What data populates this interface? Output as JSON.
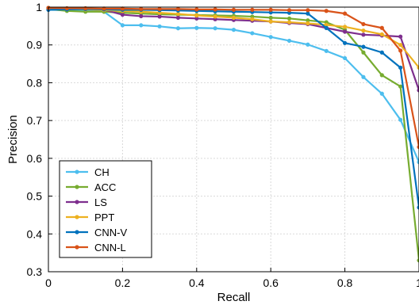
{
  "chart_data": {
    "type": "line",
    "title": "",
    "xlabel": "Recall",
    "ylabel": "Precision",
    "xlim": [
      0,
      1
    ],
    "ylim": [
      0.3,
      1
    ],
    "grid": true,
    "legend_position": "lower-left",
    "x_ticks": [
      "0",
      "0.2",
      "0.4",
      "0.6",
      "0.8",
      "1"
    ],
    "y_ticks": [
      "0.3",
      "0.4",
      "0.5",
      "0.6",
      "0.7",
      "0.8",
      "0.9",
      "1"
    ],
    "x": [
      0,
      0.05,
      0.1,
      0.15,
      0.2,
      0.25,
      0.3,
      0.35,
      0.4,
      0.45,
      0.5,
      0.55,
      0.6,
      0.65,
      0.7,
      0.75,
      0.8,
      0.85,
      0.9,
      0.95,
      1
    ],
    "series": [
      {
        "name": "CH",
        "color": "#4DBEEE",
        "values": [
          0.993,
          0.992,
          0.99,
          0.988,
          0.952,
          0.952,
          0.949,
          0.944,
          0.945,
          0.944,
          0.94,
          0.931,
          0.921,
          0.911,
          0.901,
          0.884,
          0.865,
          0.815,
          0.771,
          0.702,
          0.59
        ]
      },
      {
        "name": "ACC",
        "color": "#77AC30",
        "values": [
          0.995,
          0.99,
          0.988,
          0.988,
          0.985,
          0.983,
          0.981,
          0.98,
          0.979,
          0.978,
          0.977,
          0.975,
          0.972,
          0.97,
          0.965,
          0.96,
          0.94,
          0.88,
          0.82,
          0.79,
          0.33
        ]
      },
      {
        "name": "LS",
        "color": "#7E2F8E",
        "values": [
          0.998,
          0.996,
          0.995,
          0.993,
          0.98,
          0.976,
          0.975,
          0.972,
          0.97,
          0.968,
          0.966,
          0.964,
          0.962,
          0.958,
          0.955,
          0.945,
          0.935,
          0.927,
          0.925,
          0.922,
          0.78
        ]
      },
      {
        "name": "PPT",
        "color": "#EDB120",
        "values": [
          0.998,
          0.996,
          0.994,
          0.992,
          0.99,
          0.988,
          0.985,
          0.982,
          0.978,
          0.975,
          0.972,
          0.968,
          0.962,
          0.96,
          0.957,
          0.953,
          0.948,
          0.938,
          0.928,
          0.9,
          0.84
        ]
      },
      {
        "name": "CNN-V",
        "color": "#0072BD",
        "values": [
          0.993,
          0.994,
          0.995,
          0.994,
          0.993,
          0.993,
          0.992,
          0.991,
          0.99,
          0.989,
          0.988,
          0.987,
          0.986,
          0.985,
          0.983,
          0.945,
          0.905,
          0.895,
          0.88,
          0.84,
          0.47
        ]
      },
      {
        "name": "CNN-L",
        "color": "#D95319",
        "values": [
          0.998,
          0.997,
          0.997,
          0.996,
          0.996,
          0.995,
          0.995,
          0.995,
          0.994,
          0.994,
          0.993,
          0.993,
          0.993,
          0.992,
          0.992,
          0.99,
          0.983,
          0.955,
          0.945,
          0.885,
          0.63
        ]
      }
    ]
  }
}
